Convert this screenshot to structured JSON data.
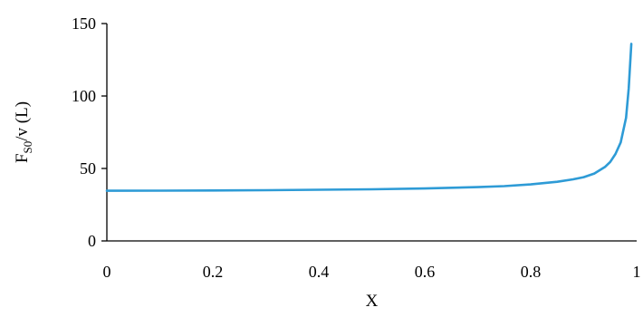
{
  "chart_data": {
    "type": "line",
    "title": "",
    "xlabel": "X",
    "ylabel": {
      "main": "F",
      "subscript": "S0",
      "rest": "/v (L)"
    },
    "xlim": [
      0,
      1
    ],
    "ylim": [
      0,
      150
    ],
    "x_ticks": [
      0,
      0.2,
      0.4,
      0.6,
      0.8,
      1
    ],
    "x_tick_labels": [
      "0",
      "0.2",
      "0.4",
      "0.6",
      "0.8",
      "1"
    ],
    "y_ticks": [
      0,
      50,
      100,
      150
    ],
    "y_tick_labels": [
      "0",
      "50",
      "100",
      "150"
    ],
    "grid": false,
    "legend": "none",
    "series": [
      {
        "color": "#2e9bd6",
        "x": [
          0,
          0.1,
          0.2,
          0.3,
          0.4,
          0.5,
          0.6,
          0.7,
          0.75,
          0.8,
          0.85,
          0.88,
          0.9,
          0.92,
          0.94,
          0.95,
          0.96,
          0.97,
          0.98,
          0.985,
          0.99
        ],
        "y": [
          34.6,
          34.7,
          34.8,
          35.0,
          35.3,
          35.6,
          36.2,
          37.1,
          37.8,
          39.0,
          40.8,
          42.5,
          44.0,
          46.5,
          51.0,
          54.5,
          60.0,
          68.0,
          85.0,
          105.0,
          136.0
        ]
      }
    ]
  }
}
